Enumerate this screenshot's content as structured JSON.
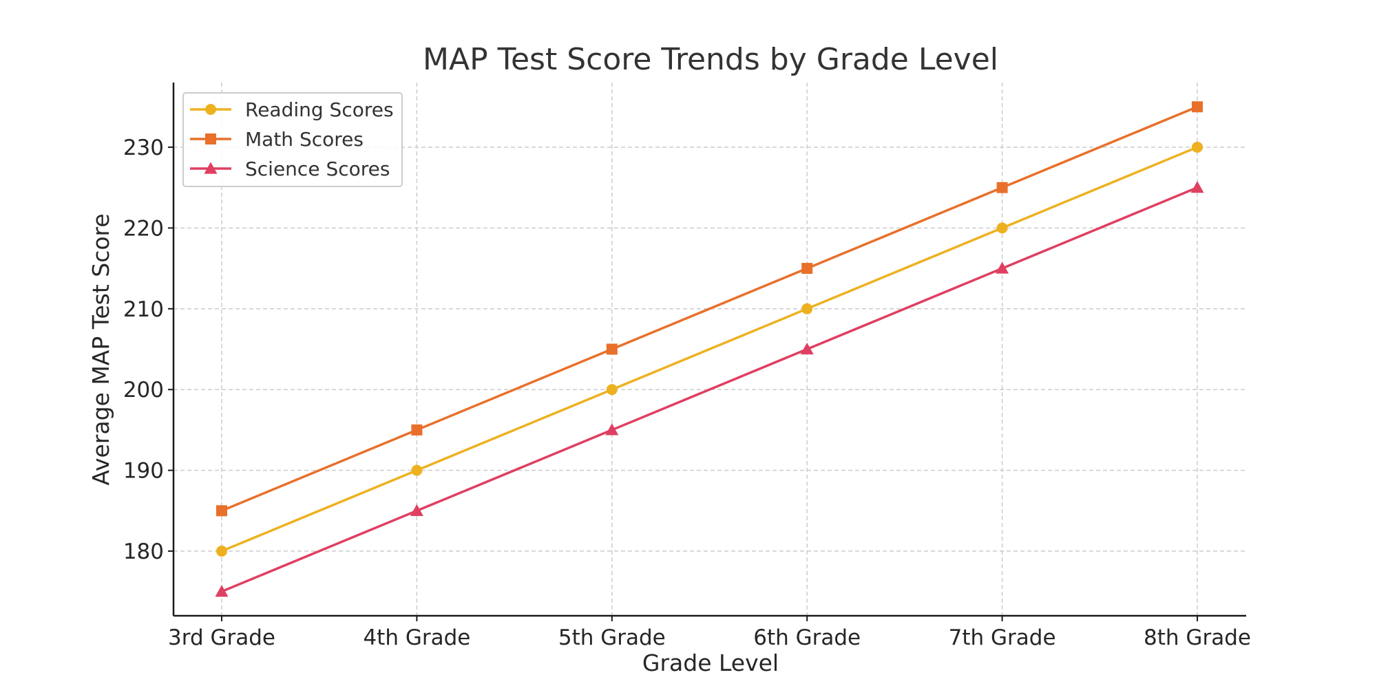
{
  "chart_data": {
    "type": "line",
    "title": "MAP Test Score Trends by Grade Level",
    "xlabel": "Grade Level",
    "ylabel": "Average MAP Test Score",
    "categories": [
      "3rd Grade",
      "4th Grade",
      "5th Grade",
      "6th Grade",
      "7th Grade",
      "8th Grade"
    ],
    "ylim": [
      172,
      238
    ],
    "yticks": [
      180,
      190,
      200,
      210,
      220,
      230
    ],
    "grid": true,
    "legend_position": "top-left",
    "series": [
      {
        "name": "Reading Scores",
        "values": [
          180,
          190,
          200,
          210,
          220,
          230
        ],
        "color": "#EDB120",
        "marker": "circle"
      },
      {
        "name": "Math Scores",
        "values": [
          185,
          195,
          205,
          215,
          225,
          235
        ],
        "color": "#E8702A",
        "marker": "square"
      },
      {
        "name": "Science Scores",
        "values": [
          175,
          185,
          195,
          205,
          215,
          225
        ],
        "color": "#DF3F61",
        "marker": "triangle"
      }
    ]
  }
}
